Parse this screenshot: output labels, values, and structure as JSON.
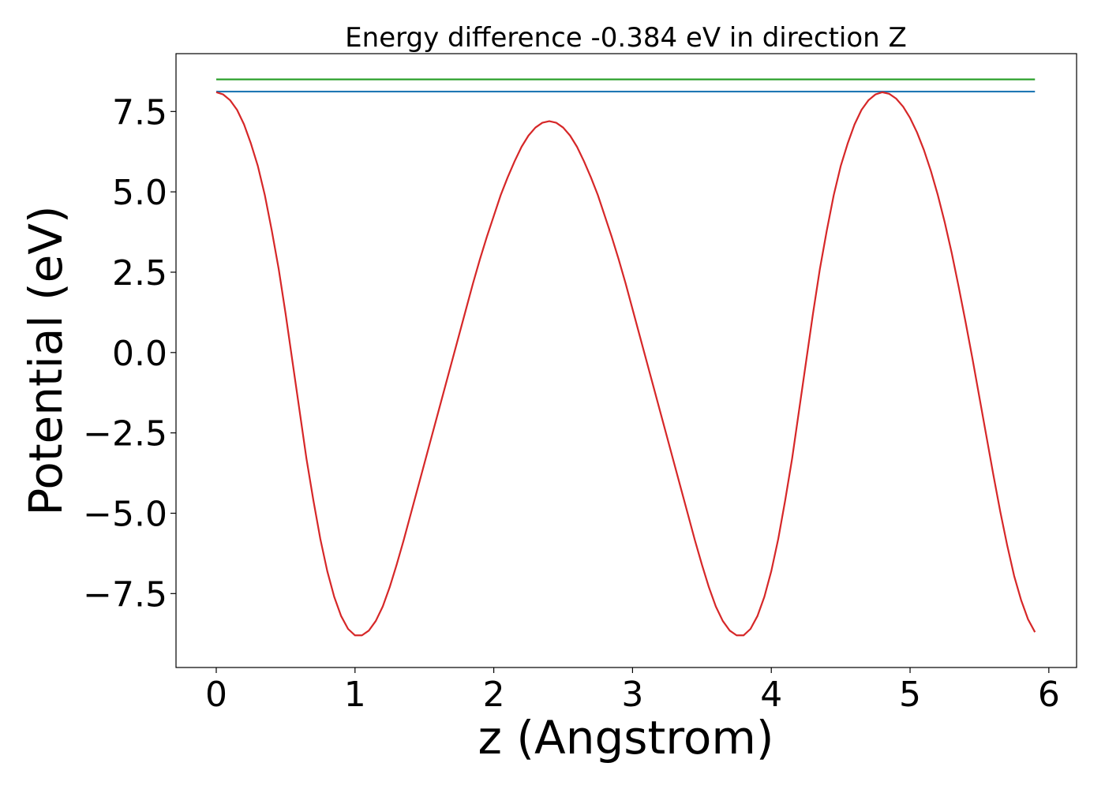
{
  "chart_data": {
    "type": "line",
    "title": "Energy difference -0.384 eV in direction Z",
    "xlabel": "z (Angstrom)",
    "ylabel": "Potential (eV)",
    "xlim": [
      -0.29,
      6.2
    ],
    "ylim": [
      -9.8,
      9.3
    ],
    "xticks": [
      0,
      1,
      2,
      3,
      4,
      5,
      6
    ],
    "xtick_labels": [
      "0",
      "1",
      "2",
      "3",
      "4",
      "5",
      "6"
    ],
    "yticks": [
      7.5,
      5.0,
      2.5,
      0.0,
      -2.5,
      -5.0,
      -7.5
    ],
    "ytick_labels": [
      "7.5",
      "5.0",
      "2.5",
      "0.0",
      "−2.5",
      "−5.0",
      "−7.5"
    ],
    "grid": false,
    "legend": "none",
    "series": [
      {
        "color": "#2ca02c",
        "x": [
          0,
          5.9
        ],
        "y": [
          8.5,
          8.5
        ]
      },
      {
        "color": "#1f77b4",
        "x": [
          0,
          5.9
        ],
        "y": [
          8.12,
          8.12
        ]
      },
      {
        "color": "#d62728",
        "x": [
          0.0,
          0.05,
          0.1,
          0.15,
          0.2,
          0.25,
          0.3,
          0.35,
          0.4,
          0.45,
          0.5,
          0.55,
          0.6,
          0.65,
          0.7,
          0.75,
          0.8,
          0.85,
          0.9,
          0.95,
          1.0,
          1.05,
          1.1,
          1.15,
          1.2,
          1.25,
          1.3,
          1.35,
          1.4,
          1.45,
          1.5,
          1.55,
          1.6,
          1.65,
          1.7,
          1.75,
          1.8,
          1.85,
          1.9,
          1.95,
          2.0,
          2.05,
          2.1,
          2.15,
          2.2,
          2.25,
          2.3,
          2.35,
          2.4,
          2.45,
          2.5,
          2.55,
          2.6,
          2.65,
          2.7,
          2.75,
          2.8,
          2.85,
          2.9,
          2.95,
          3.0,
          3.05,
          3.1,
          3.15,
          3.2,
          3.25,
          3.3,
          3.35,
          3.4,
          3.45,
          3.5,
          3.55,
          3.6,
          3.65,
          3.7,
          3.75,
          3.8,
          3.85,
          3.9,
          3.95,
          4.0,
          4.05,
          4.1,
          4.15,
          4.2,
          4.25,
          4.3,
          4.35,
          4.4,
          4.45,
          4.5,
          4.55,
          4.6,
          4.65,
          4.7,
          4.75,
          4.8,
          4.85,
          4.9,
          4.95,
          5.0,
          5.05,
          5.1,
          5.15,
          5.2,
          5.25,
          5.3,
          5.35,
          5.4,
          5.45,
          5.5,
          5.55,
          5.6,
          5.65,
          5.7,
          5.75,
          5.8,
          5.85,
          5.9
        ],
        "y": [
          8.1,
          8.03,
          7.85,
          7.55,
          7.1,
          6.5,
          5.8,
          4.9,
          3.8,
          2.6,
          1.2,
          -0.3,
          -1.8,
          -3.3,
          -4.6,
          -5.8,
          -6.8,
          -7.6,
          -8.2,
          -8.6,
          -8.8,
          -8.8,
          -8.65,
          -8.35,
          -7.9,
          -7.3,
          -6.6,
          -5.85,
          -5.05,
          -4.25,
          -3.45,
          -2.65,
          -1.85,
          -1.05,
          -0.25,
          0.55,
          1.35,
          2.15,
          2.9,
          3.6,
          4.25,
          4.9,
          5.45,
          5.95,
          6.4,
          6.75,
          7.0,
          7.15,
          7.2,
          7.15,
          7.0,
          6.75,
          6.4,
          5.95,
          5.45,
          4.9,
          4.25,
          3.6,
          2.9,
          2.15,
          1.35,
          0.55,
          -0.25,
          -1.05,
          -1.85,
          -2.65,
          -3.45,
          -4.25,
          -5.05,
          -5.85,
          -6.6,
          -7.3,
          -7.9,
          -8.35,
          -8.65,
          -8.8,
          -8.8,
          -8.6,
          -8.2,
          -7.6,
          -6.8,
          -5.8,
          -4.6,
          -3.3,
          -1.8,
          -0.3,
          1.2,
          2.6,
          3.8,
          4.9,
          5.8,
          6.5,
          7.1,
          7.55,
          7.85,
          8.03,
          8.1,
          8.05,
          7.9,
          7.65,
          7.3,
          6.85,
          6.3,
          5.65,
          4.9,
          4.05,
          3.1,
          2.05,
          0.95,
          -0.2,
          -1.4,
          -2.6,
          -3.8,
          -4.95,
          -6.0,
          -6.95,
          -7.7,
          -8.3,
          -8.7
        ]
      }
    ]
  }
}
